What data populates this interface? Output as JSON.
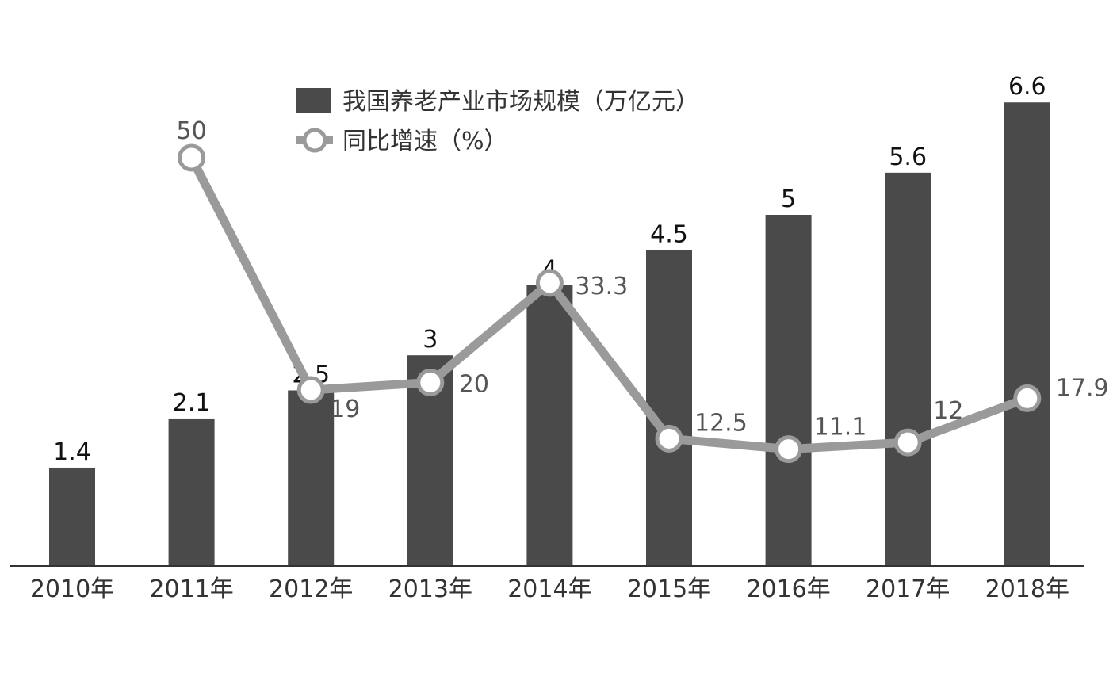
{
  "chart_data": {
    "type": "bar",
    "categories": [
      "2010年",
      "2011年",
      "2012年",
      "2013年",
      "2014年",
      "2015年",
      "2016年",
      "2017年",
      "2018年"
    ],
    "series": [
      {
        "name": "我国养老产业市场规模（万亿元）",
        "type": "bar",
        "values": [
          1.4,
          2.1,
          2.5,
          3,
          4,
          4.5,
          5,
          5.6,
          6.6
        ],
        "labels": [
          "1.4",
          "2.1",
          "2.5",
          "3",
          "4",
          "4.5",
          "5",
          "5.6",
          "6.6"
        ],
        "color": "#4a4a4a"
      },
      {
        "name": "同比增速（%）",
        "type": "line",
        "values": [
          null,
          50,
          19,
          20,
          33.3,
          12.5,
          11.1,
          12,
          17.9
        ],
        "labels": [
          "",
          "50",
          "19",
          "20",
          "33.3",
          "12.5",
          "11.1",
          "12",
          "17.9"
        ],
        "color": "#9a9a9a"
      }
    ],
    "axes": {
      "bar_ylim": [
        0,
        7
      ],
      "line_ylim": [
        0,
        60
      ]
    },
    "grid": false,
    "legend": "top-center"
  }
}
